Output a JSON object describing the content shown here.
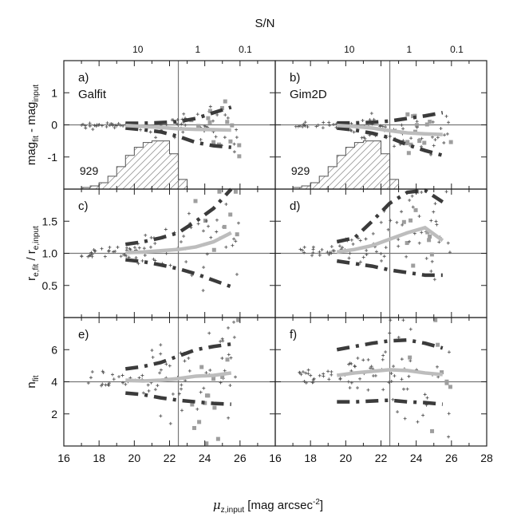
{
  "figure": {
    "top_title": "S/N",
    "xlabel_main": "μ",
    "xlabel_sub": "z,input",
    "xlabel_rest": " [mag arcsec",
    "xlabel_sup": "-2",
    "xlabel_close": "]"
  },
  "chart_data": {
    "type": "scatter",
    "x_range": [
      16,
      28
    ],
    "x_ticks": [
      "16",
      "18",
      "20",
      "22",
      "24",
      "26"
    ],
    "x_ticks_right": [
      "16",
      "18",
      "20",
      "22",
      "24",
      "26",
      "28"
    ],
    "sn_ticks": [
      {
        "label": "10",
        "mu": 20.2
      },
      {
        "label": "1",
        "mu": 23.6
      },
      {
        "label": "0.1",
        "mu": 26.3
      }
    ],
    "colors": {
      "dark": "#3b3b3b",
      "light": "#bdbdbd",
      "points": "#555555",
      "squares": "#9e9e9e"
    },
    "rows": [
      {
        "id": "mag",
        "ylabel_main": "mag",
        "ylabel_sub1": "fit",
        "ylabel_mid": " - mag",
        "ylabel_sub2": "input",
        "ylim": [
          -2.0,
          2.0
        ],
        "y_ticks": [
          "1",
          "0",
          "-1"
        ],
        "y_tick_values": [
          1,
          0,
          -1
        ],
        "ref_line": 0,
        "histogram": {
          "count_label": "929",
          "edges": [
            17.0,
            17.5,
            18.0,
            18.5,
            19.0,
            19.5,
            20.0,
            20.5,
            21.0,
            21.5,
            22.0,
            22.5,
            23.0
          ],
          "heights": [
            0.05,
            0.1,
            0.2,
            0.4,
            0.7,
            1.05,
            1.3,
            1.45,
            1.5,
            1.5,
            1.1,
            0.3
          ]
        }
      },
      {
        "id": "re",
        "ylabel_main": "r",
        "ylabel_sub1": "e,fit",
        "ylabel_mid": " / r",
        "ylabel_sub2": "e,input",
        "ylim": [
          0.0,
          2.0
        ],
        "y_ticks": [
          "1.5",
          "1.0",
          "0.5"
        ],
        "y_tick_values": [
          1.5,
          1.0,
          0.5
        ],
        "ref_line": 1.0
      },
      {
        "id": "n",
        "ylabel_main": "n",
        "ylabel_sub1": "fit",
        "ylabel_mid": "",
        "ylabel_sub2": "",
        "ylim": [
          0,
          8
        ],
        "y_ticks": [
          "6",
          "4",
          "2"
        ],
        "y_tick_values": [
          6,
          4,
          2
        ],
        "ref_line": 4
      }
    ],
    "panels": [
      {
        "id": "a",
        "label": "a)",
        "method": "Galfit",
        "row": 0,
        "col": 0,
        "median_x": [
          19.5,
          20.5,
          21.5,
          22.5,
          23.5,
          24.5,
          25.5
        ],
        "median_y": [
          -0.02,
          -0.05,
          -0.08,
          -0.12,
          -0.14,
          -0.15,
          -0.16
        ],
        "upper_y": [
          0.05,
          0.05,
          0.07,
          0.1,
          0.2,
          0.38,
          0.55
        ],
        "lower_y": [
          -0.1,
          -0.15,
          -0.22,
          -0.36,
          -0.55,
          -0.65,
          -0.7
        ]
      },
      {
        "id": "b",
        "label": "b)",
        "method": "Gim2D",
        "row": 0,
        "col": 1,
        "median_x": [
          19.5,
          20.5,
          21.5,
          22.5,
          23.5,
          24.5,
          25.5
        ],
        "median_y": [
          -0.02,
          -0.05,
          -0.1,
          -0.18,
          -0.25,
          -0.28,
          -0.3
        ],
        "upper_y": [
          0.06,
          0.06,
          0.08,
          0.12,
          0.2,
          0.28,
          0.38
        ],
        "lower_y": [
          -0.1,
          -0.16,
          -0.26,
          -0.4,
          -0.62,
          -0.8,
          -0.95
        ]
      },
      {
        "id": "c",
        "label": "c)",
        "method": "",
        "row": 1,
        "col": 0,
        "median_x": [
          19.5,
          20.5,
          21.5,
          22.5,
          23.5,
          24.5,
          25.5
        ],
        "median_y": [
          1.01,
          1.02,
          1.04,
          1.06,
          1.1,
          1.18,
          1.32
        ],
        "upper_y": [
          1.14,
          1.18,
          1.24,
          1.32,
          1.5,
          1.7,
          2.0
        ],
        "lower_y": [
          0.9,
          0.87,
          0.82,
          0.76,
          0.68,
          0.58,
          0.48
        ]
      },
      {
        "id": "d",
        "label": "d)",
        "method": "",
        "row": 1,
        "col": 1,
        "median_x": [
          19.5,
          20.5,
          21.5,
          22.5,
          23.5,
          24.5,
          25.5
        ],
        "median_y": [
          1.02,
          1.06,
          1.12,
          1.22,
          1.32,
          1.4,
          1.2
        ],
        "upper_y": [
          1.18,
          1.24,
          1.5,
          1.78,
          1.95,
          1.98,
          1.8
        ],
        "lower_y": [
          0.88,
          0.84,
          0.8,
          0.74,
          0.7,
          0.66,
          0.66
        ]
      },
      {
        "id": "e",
        "label": "e)",
        "method": "",
        "row": 2,
        "col": 0,
        "median_x": [
          19.5,
          20.5,
          21.5,
          22.5,
          23.5,
          24.5,
          25.5
        ],
        "median_y": [
          4.1,
          4.05,
          4.1,
          4.2,
          4.35,
          4.4,
          4.55
        ],
        "upper_y": [
          4.8,
          4.95,
          5.2,
          5.6,
          6.0,
          6.2,
          6.35
        ],
        "lower_y": [
          3.3,
          3.2,
          3.0,
          2.85,
          2.75,
          2.65,
          2.6
        ]
      },
      {
        "id": "f",
        "label": "f)",
        "method": "",
        "row": 2,
        "col": 1,
        "median_x": [
          19.5,
          20.5,
          21.5,
          22.5,
          23.5,
          24.5,
          25.5
        ],
        "median_y": [
          4.4,
          4.55,
          4.65,
          4.75,
          4.7,
          4.55,
          4.45
        ],
        "upper_y": [
          6.0,
          6.2,
          6.4,
          6.55,
          6.6,
          6.4,
          6.1
        ],
        "lower_y": [
          2.75,
          2.75,
          2.8,
          2.85,
          2.75,
          2.7,
          2.6
        ]
      }
    ]
  }
}
